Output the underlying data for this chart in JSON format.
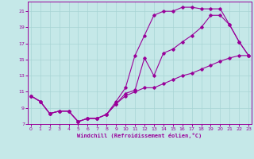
{
  "xlabel": "Windchill (Refroidissement éolien,°C)",
  "bg_color": "#c5e8e8",
  "grid_color": "#a8d4d4",
  "line_color": "#990099",
  "xlim": [
    -0.3,
    23.3
  ],
  "ylim": [
    7,
    22.2
  ],
  "yticks": [
    7,
    9,
    11,
    13,
    15,
    17,
    19,
    21
  ],
  "xticks": [
    0,
    1,
    2,
    3,
    4,
    5,
    6,
    7,
    8,
    9,
    10,
    11,
    12,
    13,
    14,
    15,
    16,
    17,
    18,
    19,
    20,
    21,
    22,
    23
  ],
  "curve1_x": [
    0,
    1,
    2,
    3,
    4,
    5,
    6,
    7,
    8,
    9,
    10,
    11,
    12,
    13,
    14,
    15,
    16,
    17,
    18,
    19,
    20,
    21,
    22,
    23
  ],
  "curve1_y": [
    10.5,
    9.8,
    8.3,
    8.6,
    8.6,
    7.3,
    7.7,
    7.7,
    8.2,
    9.8,
    11.5,
    15.5,
    18.0,
    20.5,
    21.0,
    21.0,
    21.5,
    21.5,
    21.3,
    21.3,
    21.3,
    19.3,
    17.2,
    15.5
  ],
  "curve2_x": [
    0,
    1,
    2,
    3,
    4,
    5,
    6,
    7,
    8,
    9,
    10,
    11,
    12,
    13,
    14,
    15,
    16,
    17,
    18,
    19,
    20,
    21,
    22,
    23
  ],
  "curve2_y": [
    10.5,
    9.8,
    8.3,
    8.6,
    8.6,
    7.3,
    7.7,
    7.7,
    8.2,
    9.5,
    10.8,
    11.2,
    15.2,
    13.0,
    15.8,
    16.3,
    17.2,
    18.0,
    19.0,
    20.5,
    20.5,
    19.3,
    17.2,
    15.5
  ],
  "curve3_x": [
    0,
    1,
    2,
    3,
    4,
    5,
    6,
    7,
    8,
    9,
    10,
    11,
    12,
    13,
    14,
    15,
    16,
    17,
    18,
    19,
    20,
    21,
    22,
    23
  ],
  "curve3_y": [
    10.5,
    9.8,
    8.3,
    8.6,
    8.6,
    7.3,
    7.7,
    7.7,
    8.2,
    9.5,
    10.5,
    11.0,
    11.5,
    11.5,
    12.0,
    12.5,
    13.0,
    13.3,
    13.8,
    14.3,
    14.8,
    15.2,
    15.5,
    15.5
  ]
}
